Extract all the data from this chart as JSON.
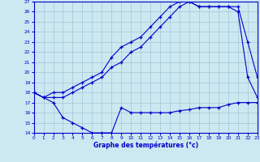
{
  "title": "Graphe des températures (°c)",
  "xlim": [
    0,
    23
  ],
  "ylim": [
    14,
    27
  ],
  "yticks": [
    14,
    15,
    16,
    17,
    18,
    19,
    20,
    21,
    22,
    23,
    24,
    25,
    26,
    27
  ],
  "xticks": [
    0,
    1,
    2,
    3,
    4,
    5,
    6,
    7,
    8,
    9,
    10,
    11,
    12,
    13,
    14,
    15,
    16,
    17,
    18,
    19,
    20,
    21,
    22,
    23
  ],
  "bg_color": "#cce8f0",
  "line_color": "#0000cc",
  "grid_color": "#a0c8d8",
  "hours": [
    0,
    1,
    2,
    3,
    4,
    5,
    6,
    7,
    8,
    9,
    10,
    11,
    12,
    13,
    14,
    15,
    16,
    17,
    18,
    19,
    20,
    21,
    22,
    23
  ],
  "tmax": [
    18.0,
    17.5,
    18.0,
    18.0,
    18.5,
    19.0,
    19.5,
    20.0,
    21.5,
    22.5,
    23.0,
    23.5,
    24.5,
    25.5,
    26.5,
    27.0,
    27.0,
    26.5,
    26.5,
    26.5,
    26.5,
    26.5,
    23.0,
    19.5
  ],
  "tavg": [
    18.0,
    17.5,
    17.5,
    17.5,
    18.0,
    18.5,
    19.0,
    19.5,
    20.5,
    21.0,
    22.0,
    22.5,
    23.5,
    24.5,
    25.5,
    26.5,
    27.0,
    26.5,
    26.5,
    26.5,
    26.5,
    26.0,
    19.5,
    17.5
  ],
  "tmin": [
    18.0,
    17.5,
    17.0,
    15.5,
    15.0,
    14.5,
    14.0,
    14.0,
    14.0,
    16.5,
    16.0,
    16.0,
    16.0,
    16.0,
    16.0,
    16.2,
    16.3,
    16.5,
    16.5,
    16.5,
    16.8,
    17.0,
    17.0,
    17.0
  ]
}
